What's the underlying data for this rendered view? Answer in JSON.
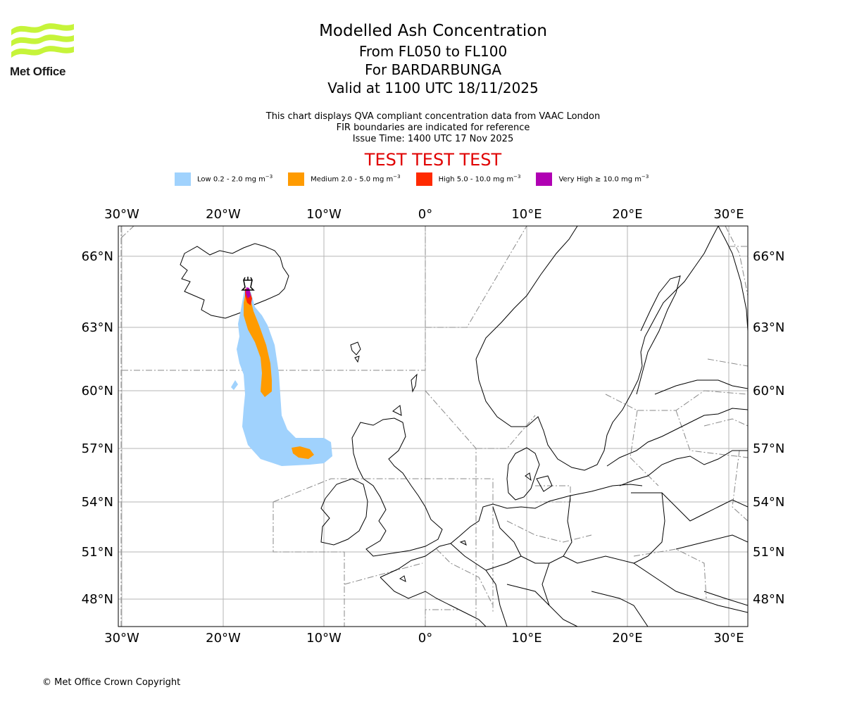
{
  "header": {
    "logo_text": "Met Office",
    "title": "Modelled Ash Concentration",
    "levels": "From FL050 to FL100",
    "volcano": "For BARDARBUNGA",
    "valid": "Valid at 1100 UTC 18/11/2025",
    "info_line1": "This chart displays QVA compliant concentration data from VAAC London",
    "info_line2": "FIR boundaries are indicated for reference",
    "issue": "Issue Time: 1400 UTC 17 Nov 2025",
    "test_banner": "TEST TEST TEST"
  },
  "legend": [
    {
      "label": "Low 0.2 - 2.0 mg m",
      "exp": "−3",
      "color": "#a0d2fd"
    },
    {
      "label": "Medium 2.0 - 5.0 mg m",
      "exp": "−3",
      "color": "#ff9b00"
    },
    {
      "label": "High 5.0 - 10.0 mg m",
      "exp": "−3",
      "color": "#ff2a00"
    },
    {
      "label": "Very High ≥ 10.0 mg m",
      "exp": "−3",
      "color": "#b000b3"
    }
  ],
  "axes": {
    "lon_labels": [
      "30°W",
      "20°W",
      "10°W",
      "0°",
      "10°E",
      "20°E",
      "30°E"
    ],
    "lat_labels": [
      "66°N",
      "63°N",
      "60°N",
      "57°N",
      "54°N",
      "51°N",
      "48°N"
    ]
  },
  "volcano_icon": "volcano-icon",
  "footer": {
    "copyright": "© Met Office Crown Copyright"
  }
}
